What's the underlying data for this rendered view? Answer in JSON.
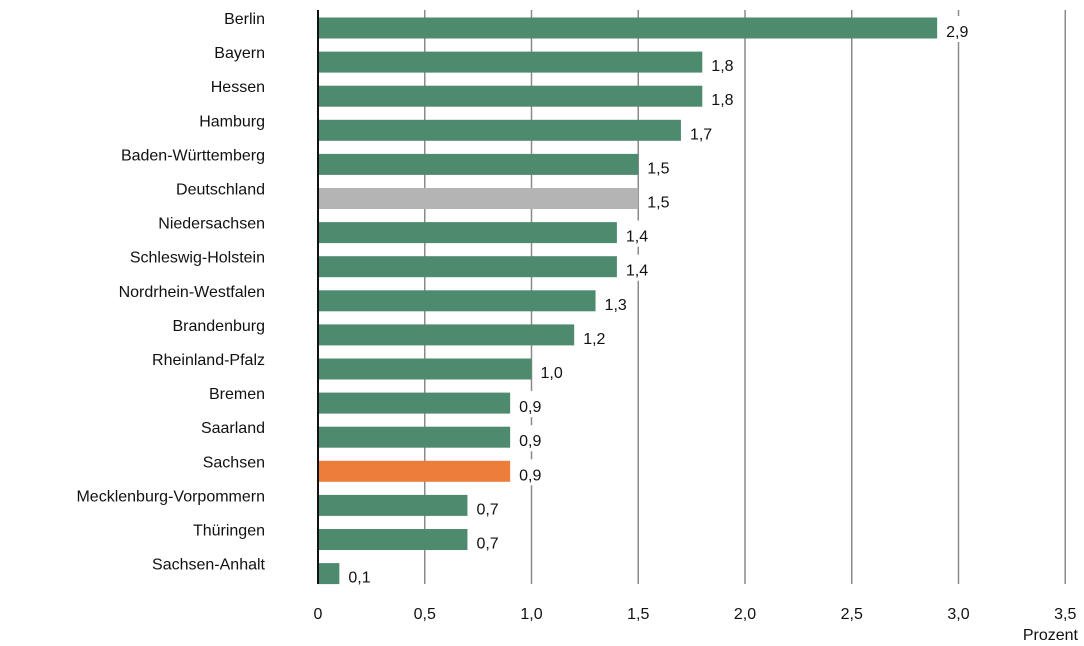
{
  "chart_data": {
    "type": "bar",
    "orientation": "horizontal",
    "categories": [
      "Berlin",
      "Bayern",
      "Hessen",
      "Hamburg",
      "Baden-Württemberg",
      "Deutschland",
      "Niedersachsen",
      "Schleswig-Holstein",
      "Nordrhein-Westfalen",
      "Brandenburg",
      "Rheinland-Pfalz",
      "Bremen",
      "Saarland",
      "Sachsen",
      "Mecklenburg-Vorpommern",
      "Thüringen",
      "Sachsen-Anhalt"
    ],
    "values": [
      2.9,
      1.8,
      1.8,
      1.7,
      1.5,
      1.5,
      1.4,
      1.4,
      1.3,
      1.2,
      1.0,
      0.9,
      0.9,
      0.9,
      0.7,
      0.7,
      0.1
    ],
    "value_labels": [
      "2,9",
      "1,8",
      "1,8",
      "1,7",
      "1,5",
      "1,5",
      "1,4",
      "1,4",
      "1,3",
      "1,2",
      "1,0",
      "0,9",
      "0,9",
      "0,9",
      "0,7",
      "0,7",
      "0,1"
    ],
    "highlight": {
      "Deutschland": "#b4b4b4",
      "Sachsen": "#ed7d3a"
    },
    "default_color": "#4e8a6e",
    "xlim": [
      0,
      3.5
    ],
    "xticks": [
      0,
      0.5,
      1.0,
      1.5,
      2.0,
      2.5,
      3.0,
      3.5
    ],
    "xtick_labels": [
      "0",
      "0,5",
      "1,0",
      "1,5",
      "2,0",
      "2,5",
      "3,0",
      "3,5"
    ],
    "xlabel": "Prozent",
    "grid": true
  }
}
